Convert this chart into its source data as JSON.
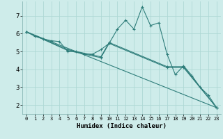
{
  "background_color": "#ceecea",
  "grid_color": "#aed8d5",
  "line_color": "#2e7d7a",
  "xlabel": "Humidex (Indice chaleur)",
  "xlabel_fontsize": 6.5,
  "ytick_fontsize": 6.5,
  "xtick_fontsize": 5.0,
  "yticks": [
    2,
    3,
    4,
    5,
    6,
    7
  ],
  "xticks": [
    0,
    1,
    2,
    3,
    4,
    5,
    6,
    7,
    8,
    9,
    10,
    11,
    12,
    13,
    14,
    15,
    16,
    17,
    18,
    19,
    20,
    21,
    22,
    23
  ],
  "xlim": [
    -0.5,
    23.5
  ],
  "ylim": [
    1.5,
    7.8
  ],
  "lines": [
    {
      "x": [
        0,
        1,
        2,
        3,
        4,
        5,
        6,
        7,
        8,
        9,
        10,
        11,
        12,
        13,
        14,
        15,
        16,
        17,
        18,
        19,
        20,
        21,
        22,
        23
      ],
      "y": [
        6.1,
        5.85,
        5.7,
        5.6,
        5.55,
        5.0,
        5.0,
        4.85,
        4.85,
        5.1,
        5.45,
        6.25,
        6.75,
        6.25,
        7.5,
        6.45,
        6.6,
        4.85,
        3.7,
        4.2,
        3.65,
        3.0,
        2.55,
        1.85
      ],
      "marker": true
    },
    {
      "x": [
        0,
        5,
        9,
        10,
        17,
        19,
        23
      ],
      "y": [
        6.1,
        5.1,
        4.7,
        5.5,
        4.15,
        4.15,
        1.85
      ],
      "marker": true
    },
    {
      "x": [
        0,
        5,
        9,
        10,
        17,
        19,
        23
      ],
      "y": [
        6.1,
        5.05,
        4.65,
        5.45,
        4.1,
        4.1,
        1.85
      ],
      "marker": true
    },
    {
      "x": [
        0,
        23
      ],
      "y": [
        6.1,
        1.85
      ],
      "marker": false
    }
  ]
}
